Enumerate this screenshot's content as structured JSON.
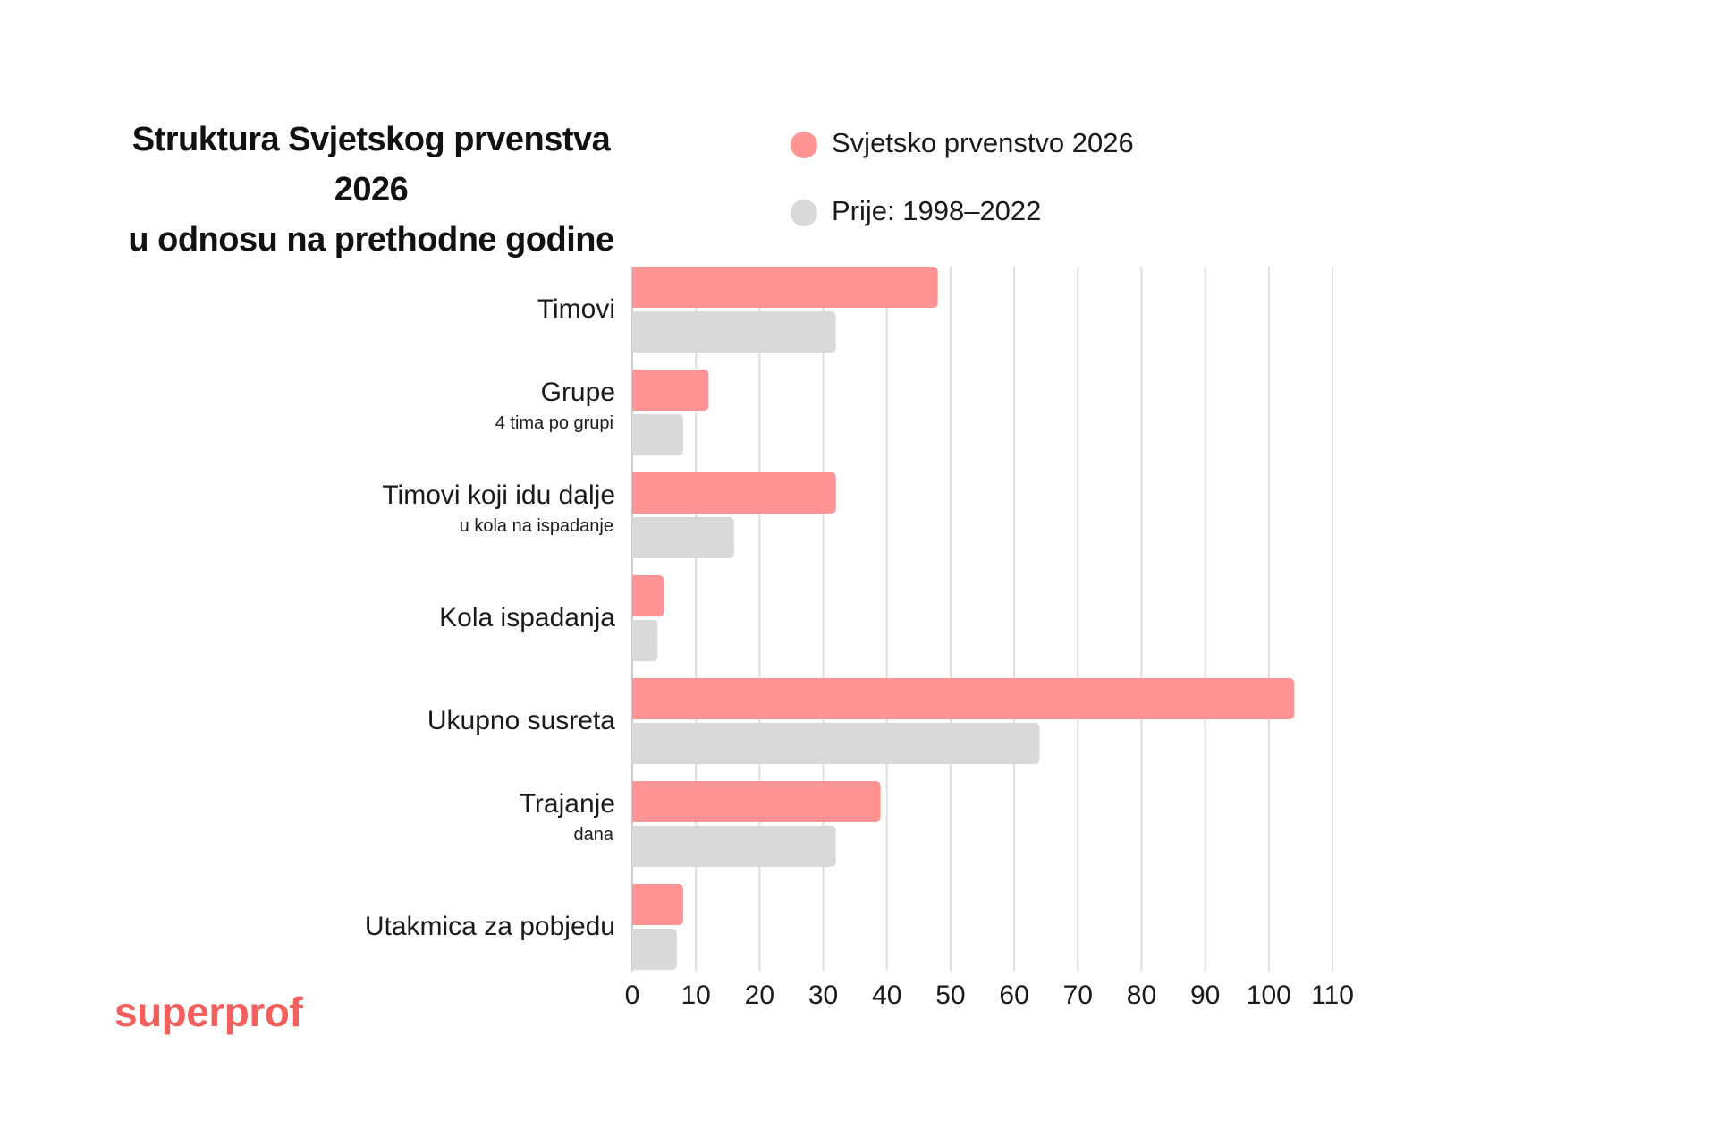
{
  "chart_data": {
    "type": "bar",
    "orientation": "horizontal",
    "title_lines": [
      "Struktura Svjetskog prvenstva 2026",
      "u odnosu na prethodne godine"
    ],
    "categories": [
      {
        "label": "Timovi",
        "sublabel": ""
      },
      {
        "label": "Grupe",
        "sublabel": "4 tima po grupi"
      },
      {
        "label": "Timovi koji idu dalje",
        "sublabel": "u kola na ispadanje"
      },
      {
        "label": "Kola ispadanja",
        "sublabel": ""
      },
      {
        "label": "Ukupno susreta",
        "sublabel": ""
      },
      {
        "label": "Trajanje",
        "sublabel": "dana"
      },
      {
        "label": "Utakmica za pobjedu",
        "sublabel": ""
      }
    ],
    "series": [
      {
        "name": "Svjetsko prvenstvo 2026",
        "color": "#ff9494",
        "values": [
          48,
          12,
          32,
          5,
          104,
          39,
          8
        ]
      },
      {
        "name": "Prije: 1998–2022",
        "color": "#d9d9d9",
        "values": [
          32,
          8,
          16,
          4,
          64,
          32,
          7
        ]
      }
    ],
    "xlim": [
      0,
      110
    ],
    "xticks": [
      0,
      10,
      20,
      30,
      40,
      50,
      60,
      70,
      80,
      90,
      100,
      110
    ],
    "grid": true,
    "legend_position": "top"
  },
  "brand": {
    "logo_text": "superprof",
    "color": "#f25f5c"
  }
}
